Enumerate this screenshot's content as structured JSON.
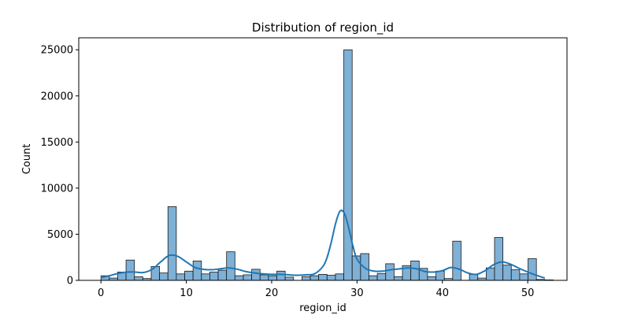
{
  "chart_data": {
    "type": "bar",
    "title": "Distribution of region_id",
    "xlabel": "region_id",
    "ylabel": "Count",
    "xlim": [
      -2.6,
      54.6
    ],
    "ylim": [
      0,
      26300
    ],
    "bin_start": 0,
    "bin_width": 0.9811,
    "x_ticks": [
      0,
      10,
      20,
      30,
      40,
      50
    ],
    "y_ticks": [
      0,
      5000,
      10000,
      15000,
      20000,
      25000
    ],
    "grid": false,
    "legend": "none",
    "bar_color": "#7fb0d6",
    "bar_edge_color": "#1a1a1a",
    "kde_color": "#1f77b4",
    "values": [
      500,
      250,
      900,
      2200,
      400,
      200,
      1500,
      800,
      8000,
      700,
      1000,
      2100,
      700,
      900,
      1100,
      3100,
      500,
      600,
      1200,
      600,
      500,
      1000,
      350,
      0,
      400,
      500,
      650,
      550,
      700,
      25000,
      2650,
      2900,
      500,
      750,
      1800,
      400,
      1600,
      2100,
      1300,
      400,
      1000,
      200,
      4250,
      0,
      650,
      250,
      1350,
      4650,
      1650,
      1150,
      700,
      2350,
      100,
      50
    ],
    "kde": {
      "x": [
        0,
        1,
        2,
        3,
        4,
        5,
        6,
        7,
        8,
        9,
        10,
        11,
        12,
        13,
        14,
        15,
        16,
        17,
        18,
        19,
        20,
        21,
        22,
        23,
        24,
        25,
        26,
        26.5,
        27,
        27.5,
        28,
        28.5,
        29,
        29.5,
        30,
        31,
        32,
        33,
        34,
        35,
        36,
        37,
        38,
        39,
        40,
        41,
        42,
        43,
        44,
        45,
        46,
        47,
        48,
        49,
        50,
        51,
        52
      ],
      "y": [
        300,
        500,
        750,
        900,
        900,
        850,
        1200,
        2000,
        2700,
        2600,
        2000,
        1400,
        1200,
        1150,
        1250,
        1350,
        1200,
        950,
        800,
        700,
        650,
        650,
        600,
        550,
        600,
        700,
        1500,
        2500,
        4200,
        6200,
        7500,
        7300,
        5800,
        3800,
        2300,
        1300,
        1000,
        1000,
        1150,
        1250,
        1350,
        1250,
        950,
        900,
        1050,
        1400,
        1200,
        800,
        650,
        1050,
        1700,
        2000,
        1750,
        1300,
        900,
        550,
        250
      ]
    }
  }
}
